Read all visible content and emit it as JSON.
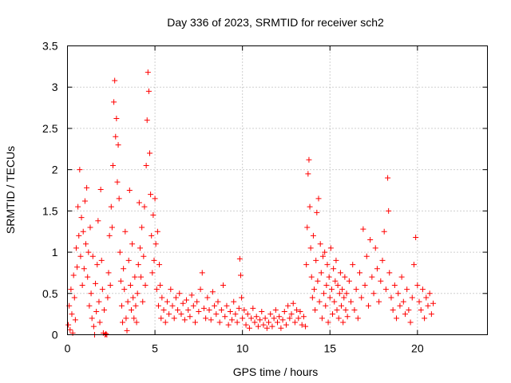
{
  "chart_data": {
    "type": "scatter",
    "title": "Day 336 of 2023, SRMTID for receiver sch2",
    "xlabel": "GPS time / hours",
    "ylabel": "SRMTID / TECUs",
    "xlim": [
      0,
      24
    ],
    "ylim": [
      0,
      3.5
    ],
    "xticks": [
      0,
      5,
      10,
      15,
      20
    ],
    "xtick_labels": [
      "0",
      "5",
      "10",
      "15",
      "20"
    ],
    "yticks": [
      0,
      0.5,
      1,
      1.5,
      2,
      2.5,
      3,
      3.5
    ],
    "ytick_labels": [
      "0",
      "0.5",
      "1",
      "1.5",
      "2",
      "2.5",
      "3",
      "3.5"
    ],
    "grid": true,
    "marker": "+",
    "color": "#ff0000",
    "series": [
      {
        "name": "sch2",
        "points": [
          [
            0.05,
            0.12
          ],
          [
            0.1,
            0.35
          ],
          [
            0.15,
            0.06
          ],
          [
            0.2,
            0.55
          ],
          [
            0.25,
            0.25
          ],
          [
            0.3,
            0.02
          ],
          [
            0.35,
            0.72
          ],
          [
            0.4,
            0.45
          ],
          [
            0.45,
            0.18
          ],
          [
            0.5,
            1.05
          ],
          [
            0.55,
            0.82
          ],
          [
            0.6,
            1.55
          ],
          [
            0.65,
            1.2
          ],
          [
            0.7,
            2.0
          ],
          [
            0.75,
            0.95
          ],
          [
            0.8,
            1.42
          ],
          [
            0.85,
            0.6
          ],
          [
            0.9,
            1.25
          ],
          [
            0.95,
            0.8
          ],
          [
            1.0,
            1.62
          ],
          [
            1.05,
            1.1
          ],
          [
            1.1,
            1.78
          ],
          [
            1.15,
            0.7
          ],
          [
            1.2,
            1.0
          ],
          [
            1.25,
            0.35
          ],
          [
            1.3,
            1.3
          ],
          [
            1.35,
            0.5
          ],
          [
            1.4,
            0.2
          ],
          [
            1.45,
            0.95
          ],
          [
            1.5,
            0.1
          ],
          [
            1.55,
            0.0
          ],
          [
            1.6,
            0.62
          ],
          [
            1.65,
            0.28
          ],
          [
            1.7,
            0.85
          ],
          [
            1.75,
            1.38
          ],
          [
            1.8,
            0.4
          ],
          [
            1.85,
            0.15
          ],
          [
            1.9,
            1.76
          ],
          [
            1.95,
            0.9
          ],
          [
            2.0,
            0.55
          ],
          [
            2.05,
            0.02
          ],
          [
            2.1,
            0.3
          ],
          [
            2.15,
            0.0
          ],
          [
            2.2,
            0.01
          ],
          [
            2.25,
            0.0
          ],
          [
            2.3,
            0.45
          ],
          [
            2.35,
            0.75
          ],
          [
            2.4,
            1.2
          ],
          [
            2.45,
            0.6
          ],
          [
            2.5,
            1.55
          ],
          [
            2.55,
            1.3
          ],
          [
            2.6,
            2.05
          ],
          [
            2.65,
            2.82
          ],
          [
            2.7,
            3.08
          ],
          [
            2.75,
            2.4
          ],
          [
            2.8,
            2.62
          ],
          [
            2.85,
            1.85
          ],
          [
            2.9,
            2.3
          ],
          [
            2.95,
            1.65
          ],
          [
            3.0,
            1.0
          ],
          [
            3.05,
            0.65
          ],
          [
            3.1,
            0.35
          ],
          [
            3.15,
            0.15
          ],
          [
            3.2,
            0.8
          ],
          [
            3.25,
            0.55
          ],
          [
            3.3,
            1.25
          ],
          [
            3.35,
            0.2
          ],
          [
            3.4,
            0.05
          ],
          [
            3.45,
            0.4
          ],
          [
            3.5,
            0.9
          ],
          [
            3.55,
            1.75
          ],
          [
            3.6,
            0.6
          ],
          [
            3.65,
            0.3
          ],
          [
            3.7,
            1.1
          ],
          [
            3.75,
            0.45
          ],
          [
            3.8,
            0.2
          ],
          [
            3.85,
            0.7
          ],
          [
            3.9,
            0.35
          ],
          [
            3.95,
            0.15
          ],
          [
            4.0,
            0.5
          ],
          [
            4.05,
            0.85
          ],
          [
            4.1,
            1.6
          ],
          [
            4.15,
            1.05
          ],
          [
            4.2,
            0.7
          ],
          [
            4.25,
            1.3
          ],
          [
            4.3,
            0.4
          ],
          [
            4.35,
            0.95
          ],
          [
            4.4,
            1.55
          ],
          [
            4.45,
            0.6
          ],
          [
            4.5,
            2.05
          ],
          [
            4.55,
            2.6
          ],
          [
            4.6,
            3.18
          ],
          [
            4.65,
            2.95
          ],
          [
            4.7,
            2.2
          ],
          [
            4.75,
            1.7
          ],
          [
            4.8,
            1.2
          ],
          [
            4.85,
            0.75
          ],
          [
            4.9,
            1.45
          ],
          [
            4.95,
            0.9
          ],
          [
            5.0,
            1.65
          ],
          [
            5.05,
            1.1
          ],
          [
            5.1,
            0.55
          ],
          [
            5.15,
            1.25
          ],
          [
            5.2,
            0.35
          ],
          [
            5.25,
            0.85
          ],
          [
            5.3,
            0.6
          ],
          [
            5.35,
            0.2
          ],
          [
            5.4,
            0.45
          ],
          [
            5.5,
            0.3
          ],
          [
            5.6,
            0.15
          ],
          [
            5.7,
            0.4
          ],
          [
            5.8,
            0.25
          ],
          [
            5.9,
            0.55
          ],
          [
            6.0,
            0.35
          ],
          [
            6.1,
            0.2
          ],
          [
            6.2,
            0.45
          ],
          [
            6.3,
            0.3
          ],
          [
            6.4,
            0.5
          ],
          [
            6.5,
            0.25
          ],
          [
            6.6,
            0.38
          ],
          [
            6.7,
            0.18
          ],
          [
            6.8,
            0.42
          ],
          [
            6.9,
            0.3
          ],
          [
            7.0,
            0.22
          ],
          [
            7.1,
            0.48
          ],
          [
            7.2,
            0.35
          ],
          [
            7.3,
            0.15
          ],
          [
            7.4,
            0.4
          ],
          [
            7.5,
            0.28
          ],
          [
            7.6,
            0.55
          ],
          [
            7.7,
            0.75
          ],
          [
            7.8,
            0.32
          ],
          [
            7.9,
            0.2
          ],
          [
            8.0,
            0.45
          ],
          [
            8.1,
            0.3
          ],
          [
            8.2,
            0.18
          ],
          [
            8.3,
            0.52
          ],
          [
            8.4,
            0.35
          ],
          [
            8.5,
            0.25
          ],
          [
            8.6,
            0.4
          ],
          [
            8.7,
            0.15
          ],
          [
            8.8,
            0.3
          ],
          [
            8.9,
            0.6
          ],
          [
            9.0,
            0.22
          ],
          [
            9.1,
            0.35
          ],
          [
            9.2,
            0.12
          ],
          [
            9.3,
            0.28
          ],
          [
            9.4,
            0.18
          ],
          [
            9.5,
            0.4
          ],
          [
            9.6,
            0.25
          ],
          [
            9.7,
            0.15
          ],
          [
            9.8,
            0.32
          ],
          [
            9.85,
            0.92
          ],
          [
            9.9,
            0.72
          ],
          [
            9.95,
            0.45
          ],
          [
            10.0,
            0.2
          ],
          [
            10.1,
            0.3
          ],
          [
            10.2,
            0.12
          ],
          [
            10.3,
            0.25
          ],
          [
            10.4,
            0.08
          ],
          [
            10.5,
            0.2
          ],
          [
            10.6,
            0.32
          ],
          [
            10.7,
            0.15
          ],
          [
            10.8,
            0.22
          ],
          [
            10.9,
            0.1
          ],
          [
            11.0,
            0.18
          ],
          [
            11.1,
            0.28
          ],
          [
            11.2,
            0.12
          ],
          [
            11.3,
            0.2
          ],
          [
            11.4,
            0.08
          ],
          [
            11.5,
            0.15
          ],
          [
            11.6,
            0.25
          ],
          [
            11.7,
            0.1
          ],
          [
            11.8,
            0.2
          ],
          [
            11.9,
            0.3
          ],
          [
            12.0,
            0.15
          ],
          [
            12.1,
            0.22
          ],
          [
            12.2,
            0.08
          ],
          [
            12.3,
            0.18
          ],
          [
            12.4,
            0.28
          ],
          [
            12.5,
            0.12
          ],
          [
            12.6,
            0.35
          ],
          [
            12.7,
            0.2
          ],
          [
            12.8,
            0.25
          ],
          [
            12.9,
            0.38
          ],
          [
            13.0,
            0.15
          ],
          [
            13.1,
            0.3
          ],
          [
            13.2,
            0.2
          ],
          [
            13.3,
            0.28
          ],
          [
            13.4,
            0.12
          ],
          [
            13.5,
            0.22
          ],
          [
            13.6,
            0.1
          ],
          [
            13.65,
            0.85
          ],
          [
            13.7,
            1.3
          ],
          [
            13.75,
            1.95
          ],
          [
            13.8,
            2.12
          ],
          [
            13.85,
            1.55
          ],
          [
            13.9,
            1.05
          ],
          [
            13.95,
            0.7
          ],
          [
            14.0,
            0.45
          ],
          [
            14.05,
            1.2
          ],
          [
            14.1,
            0.55
          ],
          [
            14.15,
            0.3
          ],
          [
            14.2,
            0.9
          ],
          [
            14.25,
            1.48
          ],
          [
            14.3,
            0.65
          ],
          [
            14.35,
            1.65
          ],
          [
            14.4,
            0.4
          ],
          [
            14.45,
            1.1
          ],
          [
            14.5,
            0.75
          ],
          [
            14.55,
            0.2
          ],
          [
            14.6,
            0.95
          ],
          [
            14.65,
            0.5
          ],
          [
            14.7,
            1.0
          ],
          [
            14.75,
            0.35
          ],
          [
            14.8,
            0.6
          ],
          [
            14.85,
            0.85
          ],
          [
            14.9,
            0.15
          ],
          [
            14.95,
            0.7
          ],
          [
            15.0,
            0.45
          ],
          [
            15.05,
            1.05
          ],
          [
            15.1,
            0.55
          ],
          [
            15.15,
            0.25
          ],
          [
            15.2,
            0.8
          ],
          [
            15.25,
            0.4
          ],
          [
            15.3,
            0.65
          ],
          [
            15.35,
            0.9
          ],
          [
            15.4,
            0.3
          ],
          [
            15.45,
            0.6
          ],
          [
            15.5,
            0.2
          ],
          [
            15.55,
            0.5
          ],
          [
            15.6,
            0.75
          ],
          [
            15.65,
            0.35
          ],
          [
            15.7,
            0.55
          ],
          [
            15.75,
            0.15
          ],
          [
            15.8,
            0.45
          ],
          [
            15.85,
            0.7
          ],
          [
            15.9,
            0.3
          ],
          [
            15.95,
            0.5
          ],
          [
            16.0,
            0.22
          ],
          [
            16.1,
            0.65
          ],
          [
            16.2,
            0.4
          ],
          [
            16.3,
            0.85
          ],
          [
            16.4,
            0.3
          ],
          [
            16.5,
            0.55
          ],
          [
            16.6,
            0.2
          ],
          [
            16.7,
            0.75
          ],
          [
            16.8,
            0.45
          ],
          [
            16.9,
            1.28
          ],
          [
            17.0,
            0.6
          ],
          [
            17.1,
            0.95
          ],
          [
            17.2,
            0.35
          ],
          [
            17.3,
            1.15
          ],
          [
            17.4,
            0.7
          ],
          [
            17.5,
            0.5
          ],
          [
            17.6,
            1.05
          ],
          [
            17.7,
            0.8
          ],
          [
            17.8,
            0.4
          ],
          [
            17.9,
            0.65
          ],
          [
            18.0,
            0.9
          ],
          [
            18.1,
            1.25
          ],
          [
            18.2,
            0.55
          ],
          [
            18.3,
            1.9
          ],
          [
            18.35,
            1.5
          ],
          [
            18.4,
            0.75
          ],
          [
            18.5,
            0.45
          ],
          [
            18.6,
            0.3
          ],
          [
            18.7,
            0.6
          ],
          [
            18.8,
            0.2
          ],
          [
            18.9,
            0.5
          ],
          [
            19.0,
            0.35
          ],
          [
            19.1,
            0.7
          ],
          [
            19.2,
            0.4
          ],
          [
            19.3,
            0.25
          ],
          [
            19.4,
            0.55
          ],
          [
            19.5,
            0.3
          ],
          [
            19.6,
            0.15
          ],
          [
            19.7,
            0.45
          ],
          [
            19.8,
            0.85
          ],
          [
            19.9,
            1.18
          ],
          [
            20.0,
            0.6
          ],
          [
            20.1,
            0.4
          ],
          [
            20.2,
            0.3
          ],
          [
            20.3,
            0.55
          ],
          [
            20.4,
            0.2
          ],
          [
            20.5,
            0.45
          ],
          [
            20.6,
            0.35
          ],
          [
            20.7,
            0.5
          ],
          [
            20.8,
            0.25
          ],
          [
            20.9,
            0.38
          ]
        ]
      }
    ]
  }
}
